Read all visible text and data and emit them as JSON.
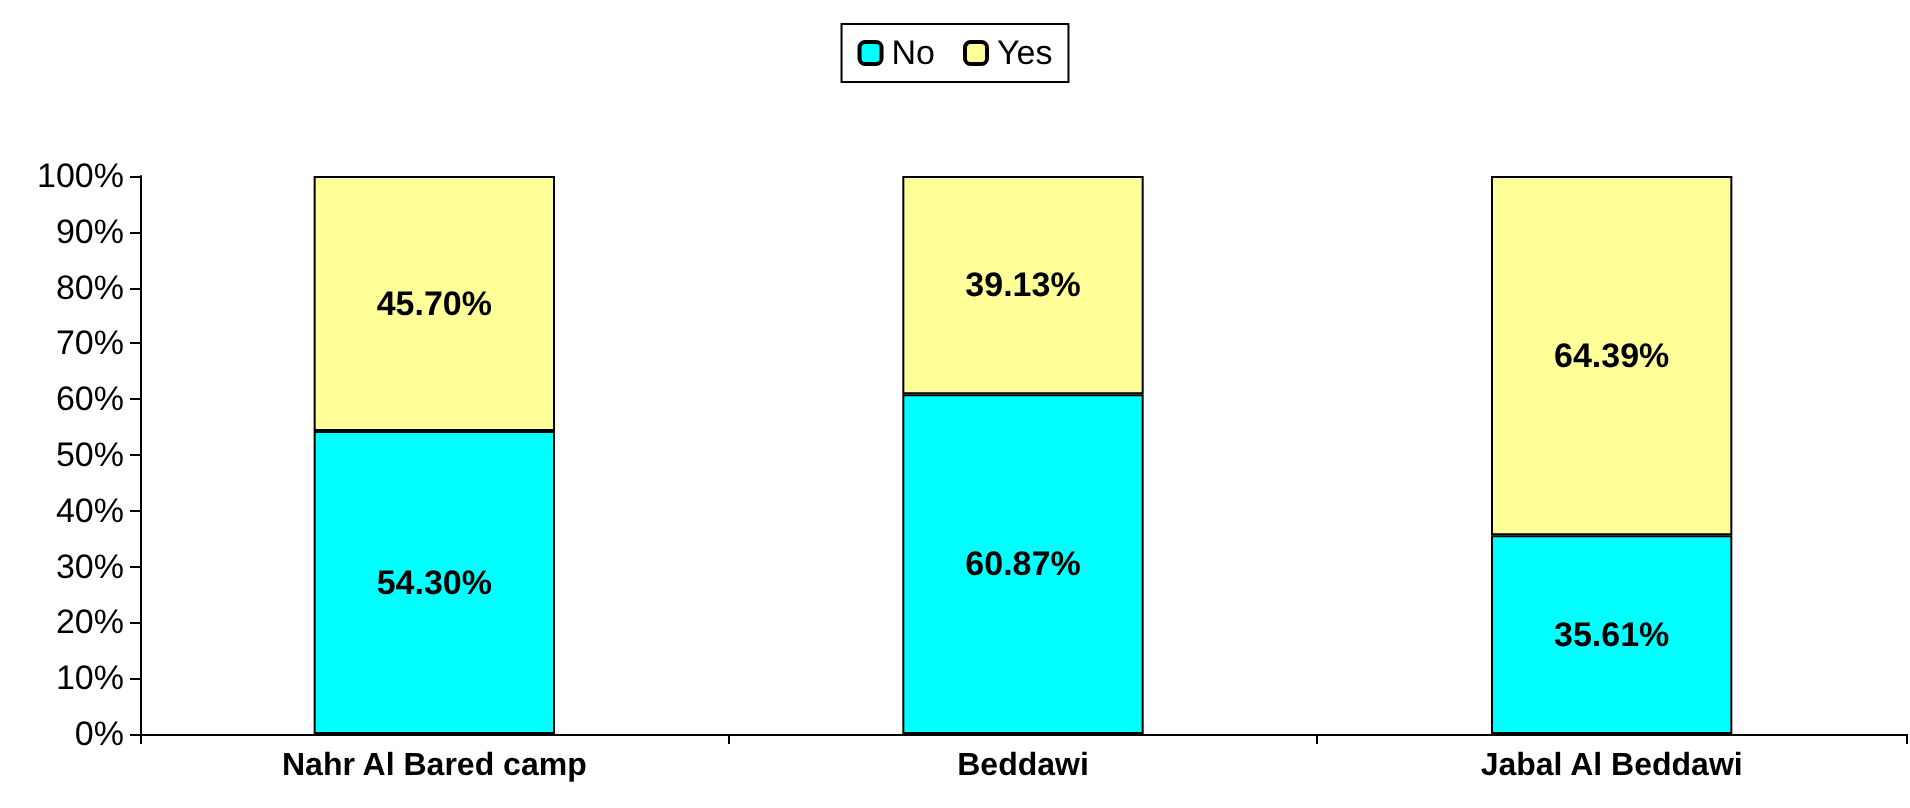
{
  "chart_data": {
    "type": "bar",
    "stacked": true,
    "categories": [
      "Nahr Al Bared camp",
      "Beddawi",
      "Jabal Al Beddawi"
    ],
    "series": [
      {
        "name": "No",
        "color": "#00ffff",
        "values": [
          54.3,
          60.87,
          35.61
        ],
        "value_labels": [
          "54.30%",
          "60.87%",
          "35.61%"
        ]
      },
      {
        "name": "Yes",
        "color": "#ffff99",
        "values": [
          45.7,
          39.13,
          64.39
        ],
        "value_labels": [
          "45.70%",
          "39.13%",
          "64.39%"
        ]
      }
    ],
    "ylim": [
      0,
      100
    ],
    "yticks": [
      {
        "value": 0,
        "label": "0%"
      },
      {
        "value": 10,
        "label": "10%"
      },
      {
        "value": 20,
        "label": "20%"
      },
      {
        "value": 30,
        "label": "30%"
      },
      {
        "value": 40,
        "label": "40%"
      },
      {
        "value": 50,
        "label": "50%"
      },
      {
        "value": 60,
        "label": "60%"
      },
      {
        "value": 70,
        "label": "70%"
      },
      {
        "value": 80,
        "label": "80%"
      },
      {
        "value": 90,
        "label": "90%"
      },
      {
        "value": 100,
        "label": "100%"
      }
    ],
    "grid": false,
    "legend": "top"
  }
}
